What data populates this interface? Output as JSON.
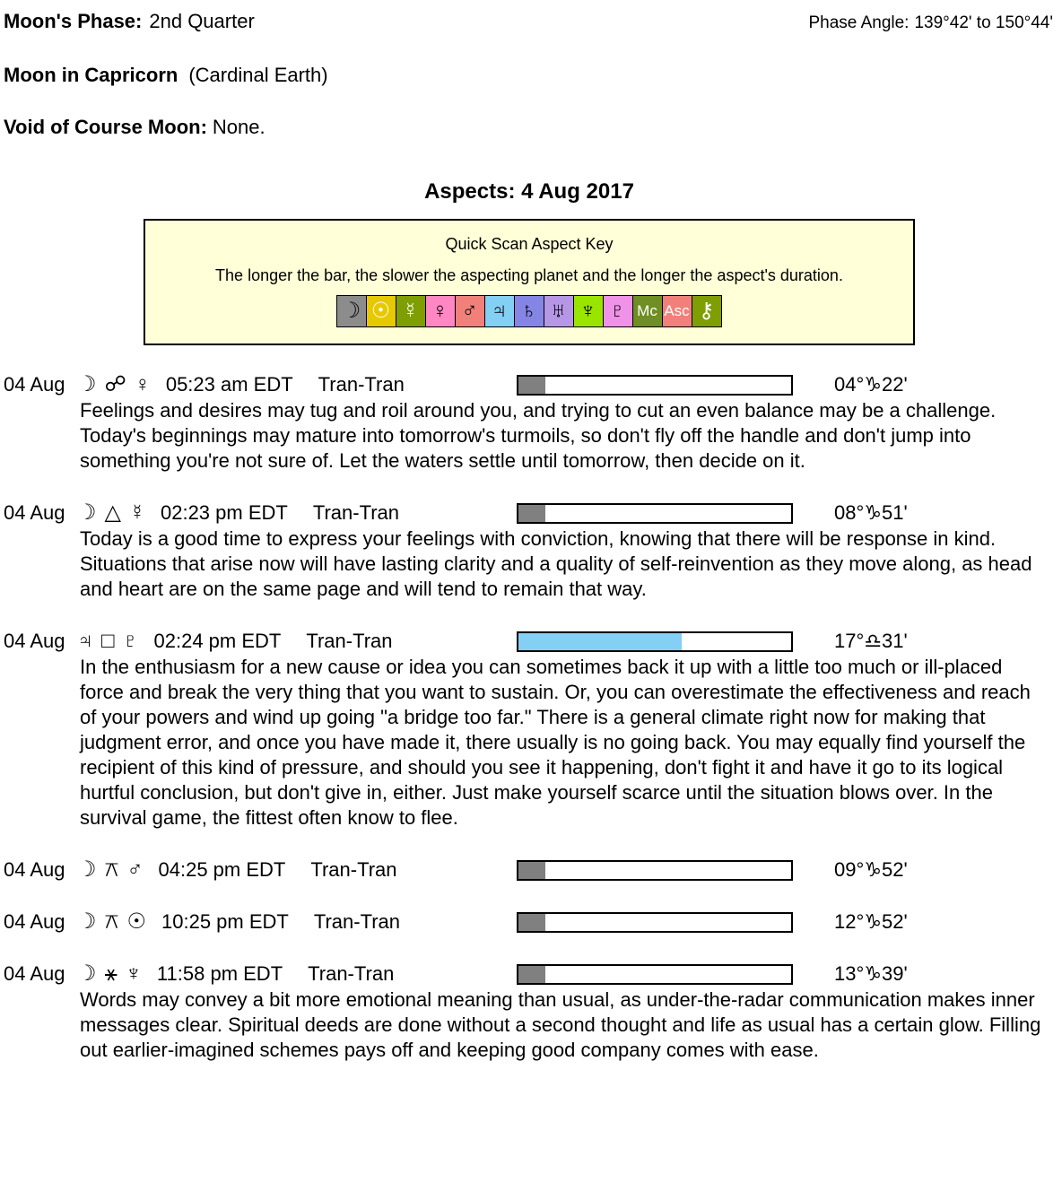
{
  "header": {
    "moon_phase_label": "Moon's Phase:",
    "moon_phase_value": "2nd Quarter",
    "phase_angle_label": "Phase Angle:",
    "phase_angle_value": "139°42' to 150°44'",
    "moon_sign_label": "Moon in Capricorn",
    "moon_sign_note": "(Cardinal Earth)",
    "voc_label": "Void of Course Moon:",
    "voc_value": "None."
  },
  "aspects_title": "Aspects: 4 Aug 2017",
  "key_box": {
    "title": "Quick Scan Aspect Key",
    "subtitle": "The longer the bar, the slower the aspecting planet and the longer the aspect's duration.",
    "symbols": [
      {
        "name": "moon",
        "glyph": "☽",
        "bg": "#8C8C8C",
        "fg": "#000000"
      },
      {
        "name": "sun",
        "glyph": "☉",
        "bg": "#E6C900",
        "fg": "#FFFFFF"
      },
      {
        "name": "mercury",
        "glyph": "☿",
        "bg": "#7E9E04",
        "fg": "#FFFFFF"
      },
      {
        "name": "venus",
        "glyph": "♀",
        "bg": "#FF87C3",
        "fg": "#000000"
      },
      {
        "name": "mars",
        "glyph": "♂",
        "bg": "#F2807A",
        "fg": "#000000"
      },
      {
        "name": "jupiter",
        "glyph": "♃",
        "bg": "#84CFF4",
        "fg": "#000000"
      },
      {
        "name": "saturn",
        "glyph": "♄",
        "bg": "#8585E6",
        "fg": "#000000"
      },
      {
        "name": "uranus",
        "glyph": "♅",
        "bg": "#B697E6",
        "fg": "#000000"
      },
      {
        "name": "neptune",
        "glyph": "♆",
        "bg": "#99E500",
        "fg": "#000000"
      },
      {
        "name": "pluto",
        "glyph": "♇",
        "bg": "#EF92E8",
        "fg": "#000000"
      },
      {
        "name": "mc",
        "glyph": "Mc",
        "bg": "#6F8E23",
        "fg": "#FFFFFF"
      },
      {
        "name": "asc",
        "glyph": "Asc",
        "bg": "#F2807A",
        "fg": "#FFFFFF"
      },
      {
        "name": "chiron",
        "glyph": "⚷",
        "bg": "#7E9E04",
        "fg": "#FFFFFF"
      }
    ]
  },
  "aspects": [
    {
      "date": "04 Aug",
      "planet1": {
        "name": "moon",
        "glyph": "☽"
      },
      "aspect": {
        "name": "opposition",
        "glyph": "☍"
      },
      "planet2": {
        "name": "venus",
        "glyph": "♀"
      },
      "time": "05:23 am EDT",
      "type": "Tran-Tran",
      "bar": {
        "pct": 10,
        "color": "#808080"
      },
      "degree": "04°♑22'",
      "description": "Feelings and desires may tug and roil around you, and trying to cut an even balance may be a challenge. Today's beginnings may mature into tomorrow's turmoils, so don't fly off the handle and don't jump into something you're not sure of. Let the waters settle until tomorrow, then decide on it."
    },
    {
      "date": "04 Aug",
      "planet1": {
        "name": "moon",
        "glyph": "☽"
      },
      "aspect": {
        "name": "trine",
        "glyph": "△"
      },
      "planet2": {
        "name": "mercury",
        "glyph": "☿"
      },
      "time": "02:23 pm EDT",
      "type": "Tran-Tran",
      "bar": {
        "pct": 10,
        "color": "#808080"
      },
      "degree": "08°♑51'",
      "description": "Today is a good time to express your feelings with conviction, knowing that there will be response in kind. Situations that arise now will have lasting clarity and a quality of self-reinvention as they move along, as head and heart are on the same page and will tend to remain that way."
    },
    {
      "date": "04 Aug",
      "planet1": {
        "name": "jupiter",
        "glyph": "♃"
      },
      "aspect": {
        "name": "square",
        "glyph": "□"
      },
      "planet2": {
        "name": "pluto",
        "glyph": "♇"
      },
      "time": "02:24 pm EDT",
      "type": "Tran-Tran",
      "bar": {
        "pct": 60,
        "color": "#84CFF4"
      },
      "degree": "17°♎31'",
      "description": "In the enthusiasm for a new cause or idea you can sometimes back it up with a little too much or ill-placed force and break the very thing that you want to sustain. Or, you can overestimate the effectiveness and reach of your powers and wind up going \"a bridge too far.\" There is a general climate right now for making that judgment error, and once you have made it, there usually is no going back. You may equally find yourself the recipient of this kind of pressure, and should you see it happening, don't fight it and have it go to its logical hurtful conclusion, but don't give in, either. Just make yourself scarce until the situation blows over. In the survival game, the fittest often know to flee."
    },
    {
      "date": "04 Aug",
      "planet1": {
        "name": "moon",
        "glyph": "☽"
      },
      "aspect": {
        "name": "quincunx",
        "glyph": "⚻"
      },
      "planet2": {
        "name": "mars",
        "glyph": "♂"
      },
      "time": "04:25 pm EDT",
      "type": "Tran-Tran",
      "bar": {
        "pct": 10,
        "color": "#808080"
      },
      "degree": "09°♑52'",
      "description": ""
    },
    {
      "date": "04 Aug",
      "planet1": {
        "name": "moon",
        "glyph": "☽"
      },
      "aspect": {
        "name": "quincunx",
        "glyph": "⚻"
      },
      "planet2": {
        "name": "sun",
        "glyph": "☉"
      },
      "time": "10:25 pm EDT",
      "type": "Tran-Tran",
      "bar": {
        "pct": 10,
        "color": "#808080"
      },
      "degree": "12°♑52'",
      "description": ""
    },
    {
      "date": "04 Aug",
      "planet1": {
        "name": "moon",
        "glyph": "☽"
      },
      "aspect": {
        "name": "sextile",
        "glyph": "⚹"
      },
      "planet2": {
        "name": "neptune",
        "glyph": "♆"
      },
      "time": "11:58 pm EDT",
      "type": "Tran-Tran",
      "bar": {
        "pct": 10,
        "color": "#808080"
      },
      "degree": "13°♑39'",
      "description": "Words may convey a bit more emotional meaning than usual, as under-the-radar communication makes inner messages clear. Spiritual deeds are done without a second thought and life as usual has a certain glow. Filling out earlier-imagined schemes pays off and keeping good company comes with ease."
    }
  ]
}
